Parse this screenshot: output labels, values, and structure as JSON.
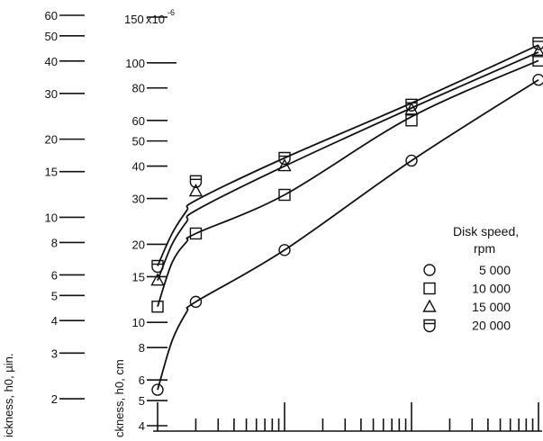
{
  "chart_data": {
    "type": "scatter",
    "x_scale": "log",
    "y_scale": "log",
    "xlim": [
      1,
      1000
    ],
    "ylim": [
      4,
      150
    ],
    "outer_axis": {
      "label": "ickness, h0, µin.",
      "ticks": [
        "60",
        "50",
        "40",
        "30",
        "20",
        "15",
        "10",
        "8",
        "6",
        "5",
        "4",
        "3",
        "2"
      ]
    },
    "inner_axis": {
      "label": "ckness, h0, cm",
      "multiplier": "x10",
      "exponent": "-6",
      "ticks": [
        {
          "v": 150,
          "t": "150"
        },
        {
          "v": 100,
          "t": "100"
        },
        {
          "v": 80,
          "t": "80"
        },
        {
          "v": 60,
          "t": "60"
        },
        {
          "v": 50,
          "t": "50"
        },
        {
          "v": 40,
          "t": "40"
        },
        {
          "v": 30,
          "t": "30"
        },
        {
          "v": 20,
          "t": "20"
        },
        {
          "v": 15,
          "t": "15"
        },
        {
          "v": 10,
          "t": "10"
        },
        {
          "v": 8,
          "t": "8"
        },
        {
          "v": 6,
          "t": "6"
        },
        {
          "v": 5,
          "t": "5"
        },
        {
          "v": 4,
          "t": "4"
        }
      ]
    },
    "legend": {
      "title": "Disk speed,",
      "subtitle": "rpm",
      "placement": "right",
      "items": [
        {
          "label": "5 000",
          "marker": "circle"
        },
        {
          "label": "10 000",
          "marker": "square"
        },
        {
          "label": "15 000",
          "marker": "triangle"
        },
        {
          "label": "20 000",
          "marker": "cup"
        }
      ]
    },
    "series": [
      {
        "marker": "circle",
        "x": [
          1,
          2,
          10,
          100,
          1000
        ],
        "y": [
          5.5,
          12,
          19,
          42,
          86
        ],
        "curve": [
          [
            1,
            5.5
          ],
          [
            1.3,
            8.5
          ],
          [
            1.7,
            11
          ],
          [
            2,
            12
          ],
          [
            10,
            19
          ],
          [
            100,
            42
          ],
          [
            1000,
            86
          ]
        ]
      },
      {
        "marker": "square",
        "x": [
          1,
          2,
          10,
          100,
          1000
        ],
        "y": [
          11.5,
          22,
          31,
          60,
          102
        ],
        "curve": [
          [
            1,
            11.5
          ],
          [
            1.3,
            17
          ],
          [
            1.7,
            20.5
          ],
          [
            2,
            22
          ],
          [
            10,
            31
          ],
          [
            100,
            62
          ],
          [
            1000,
            102
          ]
        ]
      },
      {
        "marker": "triangle",
        "x": [
          1,
          2,
          10,
          100,
          1000
        ],
        "y": [
          14.5,
          32,
          40,
          66,
          110
        ],
        "curve": [
          [
            1,
            14.5
          ],
          [
            1.3,
            20
          ],
          [
            1.7,
            24.5
          ],
          [
            2,
            27
          ],
          [
            10,
            40
          ],
          [
            100,
            67
          ],
          [
            1000,
            110
          ]
        ]
      },
      {
        "marker": "cup",
        "x": [
          1,
          2,
          10,
          100,
          1000
        ],
        "y": [
          16.5,
          35,
          43,
          69,
          119
        ],
        "curve": [
          [
            1,
            16.5
          ],
          [
            1.3,
            22
          ],
          [
            1.7,
            27
          ],
          [
            2,
            29.5
          ],
          [
            10,
            43
          ],
          [
            100,
            70
          ],
          [
            1000,
            117
          ]
        ]
      }
    ]
  }
}
